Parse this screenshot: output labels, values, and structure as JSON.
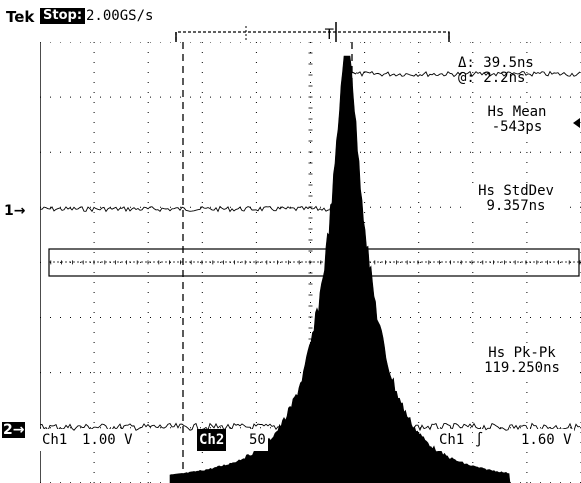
{
  "header": {
    "brand": "Tek",
    "run_state": "Stop:",
    "sample_rate": "2.00GS/s"
  },
  "cursor": {
    "delta": "Δ: 39.5ns",
    "at": "@: 2.2ns"
  },
  "measurements": {
    "mean_label": "Hs Mean",
    "mean_value": "-543ps",
    "stddev_label": "Hs StdDev",
    "stddev_value": "9.357ns",
    "pkpk_label": "Hs Pk-Pk",
    "pkpk_value": "119.250ns"
  },
  "markers": {
    "ch1": "1→",
    "ch2": "2→"
  },
  "status_bar": {
    "ch1_label": "Ch1",
    "ch1_scale": "1.00 V",
    "ch2_label": "Ch2",
    "ch2_scale": "50",
    "trigger_source": "Ch1",
    "trigger_slope": "∫",
    "trigger_level": "1.60 V"
  },
  "colors": {
    "background": "#ffffff",
    "trace": "#000000"
  }
}
